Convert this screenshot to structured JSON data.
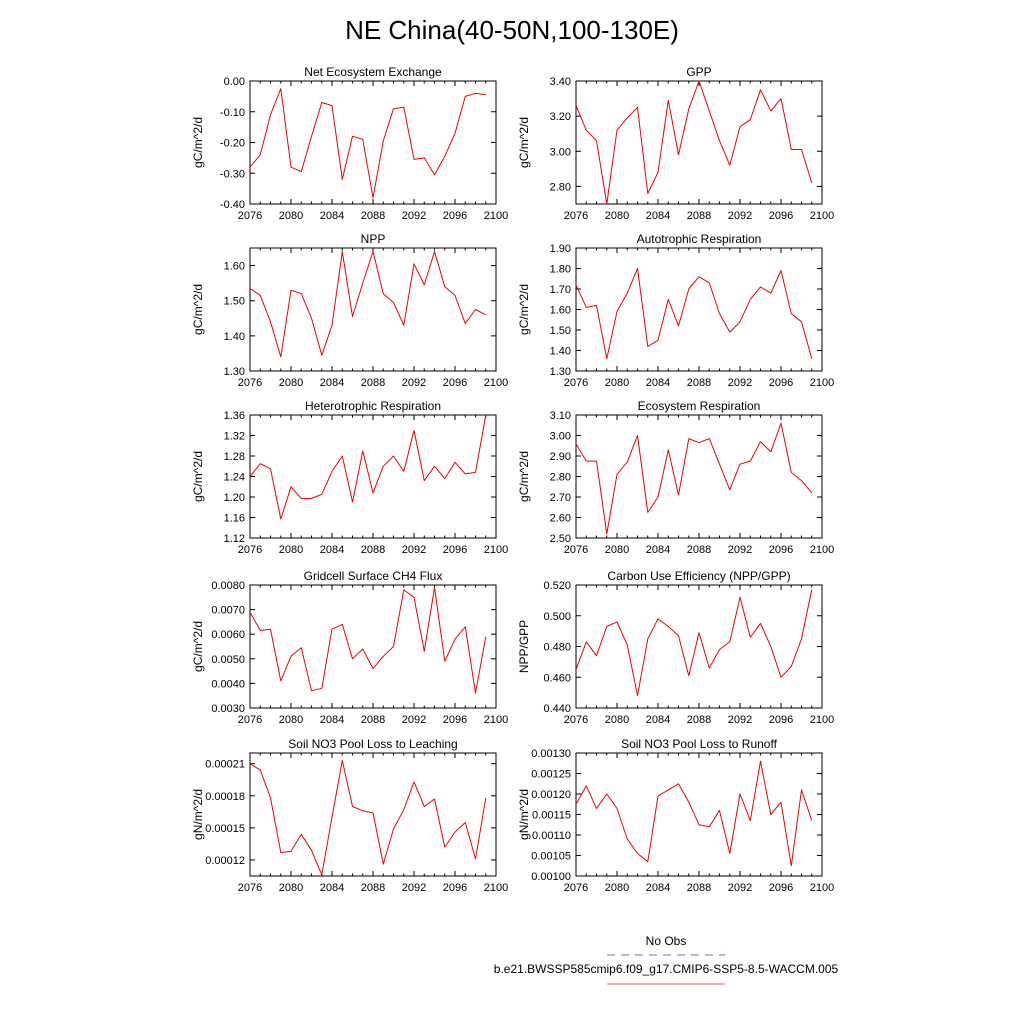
{
  "figure": {
    "title": "NE China(40-50N,100-130E)",
    "legend": [
      {
        "label": "No Obs",
        "color": "#6a6ad8",
        "style": "dashed"
      },
      {
        "label": "b.e21.BWSSP585cmip6.f09_g17.CMIP6-SSP5-8.5-WACCM.005",
        "color": "#e06666",
        "style": "solid"
      }
    ],
    "series_color": "#ee0000"
  },
  "chart_data": [
    {
      "type": "line",
      "title": "Net Ecosystem Exchange",
      "ylabel": "gC/m^2/d",
      "xlim": [
        2076,
        2100
      ],
      "ylim": [
        -0.4,
        0.0
      ],
      "xticks": [
        2076,
        2080,
        2084,
        2088,
        2092,
        2096,
        2100
      ],
      "xticklabels": [
        "2076",
        "2080",
        "2084",
        "2088",
        "2092",
        "2096",
        "2100"
      ],
      "yticks": [
        -0.4,
        -0.3,
        -0.2,
        -0.1,
        0.0
      ],
      "yticklabels": [
        "-0.40",
        "-0.30",
        "-0.20",
        "-0.10",
        "0.00"
      ],
      "x": [
        2076,
        2077,
        2078,
        2079,
        2080,
        2081,
        2082,
        2083,
        2084,
        2085,
        2086,
        2087,
        2088,
        2089,
        2090,
        2091,
        2092,
        2093,
        2094,
        2095,
        2096,
        2097,
        2098,
        2099
      ],
      "values": [
        -0.28,
        -0.24,
        -0.11,
        -0.025,
        -0.28,
        -0.295,
        -0.18,
        -0.07,
        -0.08,
        -0.32,
        -0.18,
        -0.19,
        -0.38,
        -0.195,
        -0.09,
        -0.085,
        -0.255,
        -0.25,
        -0.305,
        -0.245,
        -0.17,
        -0.05,
        -0.04,
        -0.045
      ]
    },
    {
      "type": "line",
      "title": "GPP",
      "ylabel": "gC/m^2/d",
      "xlim": [
        2076,
        2100
      ],
      "ylim": [
        2.7,
        3.4
      ],
      "xticks": [
        2076,
        2080,
        2084,
        2088,
        2092,
        2096,
        2100
      ],
      "xticklabels": [
        "2076",
        "2080",
        "2084",
        "2088",
        "2092",
        "2096",
        "2100"
      ],
      "yticks": [
        2.8,
        3.0,
        3.2,
        3.4
      ],
      "yticklabels": [
        "2.80",
        "3.00",
        "3.20",
        "3.40"
      ],
      "x": [
        2076,
        2077,
        2078,
        2079,
        2080,
        2081,
        2082,
        2083,
        2084,
        2085,
        2086,
        2087,
        2088,
        2089,
        2090,
        2091,
        2092,
        2093,
        2094,
        2095,
        2096,
        2097,
        2098,
        2099
      ],
      "values": [
        3.26,
        3.12,
        3.06,
        2.7,
        3.12,
        3.19,
        3.25,
        2.76,
        2.88,
        3.29,
        2.98,
        3.24,
        3.4,
        3.23,
        3.06,
        2.92,
        3.14,
        3.18,
        3.35,
        3.23,
        3.3,
        3.01,
        3.01,
        2.82
      ]
    },
    {
      "type": "line",
      "title": "NPP",
      "ylabel": "gC/m^2/d",
      "xlim": [
        2076,
        2100
      ],
      "ylim": [
        1.3,
        1.65
      ],
      "xticks": [
        2076,
        2080,
        2084,
        2088,
        2092,
        2096,
        2100
      ],
      "xticklabels": [
        "2076",
        "2080",
        "2084",
        "2088",
        "2092",
        "2096",
        "2100"
      ],
      "yticks": [
        1.3,
        1.4,
        1.5,
        1.6
      ],
      "yticklabels": [
        "1.30",
        "1.40",
        "1.50",
        "1.60"
      ],
      "x": [
        2076,
        2077,
        2078,
        2079,
        2080,
        2081,
        2082,
        2083,
        2084,
        2085,
        2086,
        2087,
        2088,
        2089,
        2090,
        2091,
        2092,
        2093,
        2094,
        2095,
        2096,
        2097,
        2098,
        2099
      ],
      "values": [
        1.535,
        1.515,
        1.44,
        1.34,
        1.53,
        1.52,
        1.45,
        1.345,
        1.43,
        1.64,
        1.455,
        1.55,
        1.64,
        1.52,
        1.495,
        1.43,
        1.605,
        1.545,
        1.64,
        1.54,
        1.515,
        1.435,
        1.475,
        1.46
      ]
    },
    {
      "type": "line",
      "title": "Autotrophic Respiration",
      "ylabel": "gC/m^2/d",
      "xlim": [
        2076,
        2100
      ],
      "ylim": [
        1.3,
        1.9
      ],
      "xticks": [
        2076,
        2080,
        2084,
        2088,
        2092,
        2096,
        2100
      ],
      "xticklabels": [
        "2076",
        "2080",
        "2084",
        "2088",
        "2092",
        "2096",
        "2100"
      ],
      "yticks": [
        1.3,
        1.4,
        1.5,
        1.6,
        1.7,
        1.8,
        1.9
      ],
      "yticklabels": [
        "1.30",
        "1.40",
        "1.50",
        "1.60",
        "1.70",
        "1.80",
        "1.90"
      ],
      "x": [
        2076,
        2077,
        2078,
        2079,
        2080,
        2081,
        2082,
        2083,
        2084,
        2085,
        2086,
        2087,
        2088,
        2089,
        2090,
        2091,
        2092,
        2093,
        2094,
        2095,
        2096,
        2097,
        2098,
        2099
      ],
      "values": [
        1.72,
        1.61,
        1.62,
        1.36,
        1.59,
        1.68,
        1.8,
        1.42,
        1.45,
        1.65,
        1.52,
        1.7,
        1.76,
        1.73,
        1.58,
        1.49,
        1.54,
        1.65,
        1.71,
        1.68,
        1.79,
        1.58,
        1.54,
        1.36
      ]
    },
    {
      "type": "line",
      "title": "Heterotrophic Respiration",
      "ylabel": "gC/m^2/d",
      "xlim": [
        2076,
        2100
      ],
      "ylim": [
        1.12,
        1.36
      ],
      "xticks": [
        2076,
        2080,
        2084,
        2088,
        2092,
        2096,
        2100
      ],
      "xticklabels": [
        "2076",
        "2080",
        "2084",
        "2088",
        "2092",
        "2096",
        "2100"
      ],
      "yticks": [
        1.12,
        1.16,
        1.2,
        1.24,
        1.28,
        1.32,
        1.36
      ],
      "yticklabels": [
        "1.12",
        "1.16",
        "1.20",
        "1.24",
        "1.28",
        "1.32",
        "1.36"
      ],
      "x": [
        2076,
        2077,
        2078,
        2079,
        2080,
        2081,
        2082,
        2083,
        2084,
        2085,
        2086,
        2087,
        2088,
        2089,
        2090,
        2091,
        2092,
        2093,
        2094,
        2095,
        2096,
        2097,
        2098,
        2099
      ],
      "values": [
        1.24,
        1.265,
        1.255,
        1.157,
        1.22,
        1.197,
        1.197,
        1.205,
        1.25,
        1.28,
        1.19,
        1.29,
        1.208,
        1.26,
        1.28,
        1.25,
        1.33,
        1.232,
        1.26,
        1.236,
        1.268,
        1.245,
        1.248,
        1.36
      ]
    },
    {
      "type": "line",
      "title": "Ecosystem Respiration",
      "ylabel": "gC/m^2/d",
      "xlim": [
        2076,
        2100
      ],
      "ylim": [
        2.5,
        3.1
      ],
      "xticks": [
        2076,
        2080,
        2084,
        2088,
        2092,
        2096,
        2100
      ],
      "xticklabels": [
        "2076",
        "2080",
        "2084",
        "2088",
        "2092",
        "2096",
        "2100"
      ],
      "yticks": [
        2.5,
        2.6,
        2.7,
        2.8,
        2.9,
        3.0,
        3.1
      ],
      "yticklabels": [
        "2.50",
        "2.60",
        "2.70",
        "2.80",
        "2.90",
        "3.00",
        "3.10"
      ],
      "x": [
        2076,
        2077,
        2078,
        2079,
        2080,
        2081,
        2082,
        2083,
        2084,
        2085,
        2086,
        2087,
        2088,
        2089,
        2090,
        2091,
        2092,
        2093,
        2094,
        2095,
        2096,
        2097,
        2098,
        2099
      ],
      "values": [
        2.96,
        2.875,
        2.875,
        2.52,
        2.81,
        2.87,
        3.0,
        2.625,
        2.7,
        2.93,
        2.71,
        2.985,
        2.965,
        2.985,
        2.86,
        2.735,
        2.86,
        2.875,
        2.97,
        2.92,
        3.06,
        2.82,
        2.78,
        2.72
      ]
    },
    {
      "type": "line",
      "title": "Gridcell Surface CH4 Flux",
      "ylabel": "gC/m^2/d",
      "xlim": [
        2076,
        2100
      ],
      "ylim": [
        0.003,
        0.008
      ],
      "xticks": [
        2076,
        2080,
        2084,
        2088,
        2092,
        2096,
        2100
      ],
      "xticklabels": [
        "2076",
        "2080",
        "2084",
        "2088",
        "2092",
        "2096",
        "2100"
      ],
      "yticks": [
        0.003,
        0.004,
        0.005,
        0.006,
        0.007,
        0.008
      ],
      "yticklabels": [
        "0.0030",
        "0.0040",
        "0.0050",
        "0.0060",
        "0.0070",
        "0.0080"
      ],
      "x": [
        2076,
        2077,
        2078,
        2079,
        2080,
        2081,
        2082,
        2083,
        2084,
        2085,
        2086,
        2087,
        2088,
        2089,
        2090,
        2091,
        2092,
        2093,
        2094,
        2095,
        2096,
        2097,
        2098,
        2099
      ],
      "values": [
        0.0069,
        0.00615,
        0.0062,
        0.0041,
        0.0051,
        0.00545,
        0.0037,
        0.0038,
        0.0062,
        0.0064,
        0.005,
        0.0054,
        0.0046,
        0.0051,
        0.0055,
        0.0078,
        0.0075,
        0.0053,
        0.0079,
        0.0049,
        0.0058,
        0.0063,
        0.0036,
        0.0059
      ]
    },
    {
      "type": "line",
      "title": "Carbon Use Efficiency (NPP/GPP)",
      "ylabel": "NPP/GPP",
      "xlim": [
        2076,
        2100
      ],
      "ylim": [
        0.44,
        0.52
      ],
      "xticks": [
        2076,
        2080,
        2084,
        2088,
        2092,
        2096,
        2100
      ],
      "xticklabels": [
        "2076",
        "2080",
        "2084",
        "2088",
        "2092",
        "2096",
        "2100"
      ],
      "yticks": [
        0.44,
        0.46,
        0.48,
        0.5,
        0.52
      ],
      "yticklabels": [
        "0.440",
        "0.460",
        "0.480",
        "0.500",
        "0.520"
      ],
      "x": [
        2076,
        2077,
        2078,
        2079,
        2080,
        2081,
        2082,
        2083,
        2084,
        2085,
        2086,
        2087,
        2088,
        2089,
        2090,
        2091,
        2092,
        2093,
        2094,
        2095,
        2096,
        2097,
        2098,
        2099
      ],
      "values": [
        0.465,
        0.483,
        0.474,
        0.493,
        0.496,
        0.481,
        0.448,
        0.485,
        0.498,
        0.493,
        0.487,
        0.461,
        0.489,
        0.466,
        0.478,
        0.483,
        0.512,
        0.486,
        0.495,
        0.48,
        0.46,
        0.467,
        0.485,
        0.517
      ]
    },
    {
      "type": "line",
      "title": "Soil NO3 Pool Loss to Leaching",
      "ylabel": "gN/m^2/d",
      "xlim": [
        2076,
        2100
      ],
      "ylim": [
        0.000105,
        0.00022
      ],
      "xticks": [
        2076,
        2080,
        2084,
        2088,
        2092,
        2096,
        2100
      ],
      "xticklabels": [
        "2076",
        "2080",
        "2084",
        "2088",
        "2092",
        "2096",
        "2100"
      ],
      "yticks": [
        0.00012,
        0.00015,
        0.00018,
        0.00021
      ],
      "yticklabels": [
        "0.00012",
        "0.00015",
        "0.00018",
        "0.00021"
      ],
      "x": [
        2076,
        2077,
        2078,
        2079,
        2080,
        2081,
        2082,
        2083,
        2084,
        2085,
        2086,
        2087,
        2088,
        2089,
        2090,
        2091,
        2092,
        2093,
        2094,
        2095,
        2096,
        2097,
        2098,
        2099
      ],
      "values": [
        0.00021,
        0.000204,
        0.000178,
        0.000127,
        0.000128,
        0.000144,
        0.000129,
        0.000106,
        0.00016,
        0.000213,
        0.00017,
        0.000166,
        0.000164,
        0.000116,
        0.000149,
        0.000167,
        0.000193,
        0.00017,
        0.000177,
        0.000132,
        0.000146,
        0.000155,
        0.000121,
        0.000178
      ]
    },
    {
      "type": "line",
      "title": "Soil NO3 Pool Loss to Runoff",
      "ylabel": "gN/m^2/d",
      "xlim": [
        2076,
        2100
      ],
      "ylim": [
        0.001,
        0.0013
      ],
      "xticks": [
        2076,
        2080,
        2084,
        2088,
        2092,
        2096,
        2100
      ],
      "xticklabels": [
        "2076",
        "2080",
        "2084",
        "2088",
        "2092",
        "2096",
        "2100"
      ],
      "yticks": [
        0.001,
        0.00105,
        0.0011,
        0.00115,
        0.0012,
        0.00125,
        0.0013
      ],
      "yticklabels": [
        "0.00100",
        "0.00105",
        "0.00110",
        "0.00115",
        "0.00120",
        "0.00125",
        "0.00130"
      ],
      "x": [
        2076,
        2077,
        2078,
        2079,
        2080,
        2081,
        2082,
        2083,
        2084,
        2085,
        2086,
        2087,
        2088,
        2089,
        2090,
        2091,
        2092,
        2093,
        2094,
        2095,
        2096,
        2097,
        2098,
        2099
      ],
      "values": [
        0.001175,
        0.00122,
        0.001165,
        0.0012,
        0.001165,
        0.00109,
        0.001055,
        0.001035,
        0.001195,
        0.00121,
        0.001225,
        0.00118,
        0.001125,
        0.00112,
        0.00116,
        0.001055,
        0.0012,
        0.001135,
        0.00128,
        0.00115,
        0.00118,
        0.001025,
        0.00121,
        0.001135
      ]
    }
  ]
}
